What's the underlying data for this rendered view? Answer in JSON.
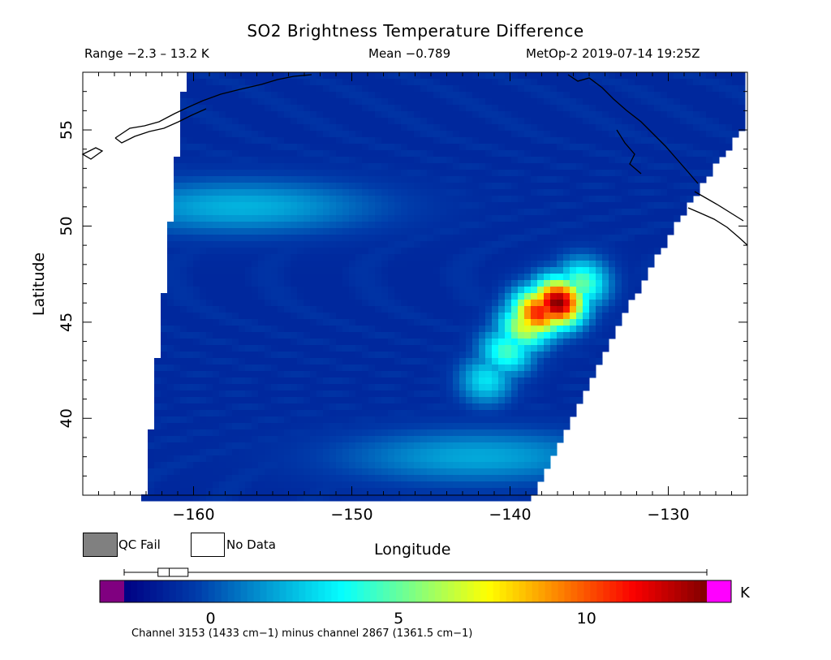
{
  "chart_data": {
    "type": "heatmap",
    "title": "SO2 Brightness Temperature Difference",
    "header": {
      "range": "Range −2.3 – 13.2 K",
      "mean": "Mean −0.789",
      "satellite_time": "MetOp-2 2019-07-14 19:25Z"
    },
    "xlabel": "Longitude",
    "ylabel": "Latitude",
    "xlim": [
      -167,
      -125
    ],
    "ylim": [
      36,
      58
    ],
    "xticks": [
      -160,
      -150,
      -140,
      -130
    ],
    "xtick_labels": [
      "−160",
      "−150",
      "−140",
      "−130"
    ],
    "yticks": [
      40,
      45,
      50,
      55
    ],
    "ytick_labels": [
      "40",
      "45",
      "50",
      "55"
    ],
    "colorbar": {
      "min": -2.3,
      "max": 13.2,
      "ticks": [
        0,
        5,
        10
      ],
      "tick_labels": [
        "0",
        "5",
        "10"
      ],
      "unit": "K",
      "below_color": "#800080",
      "above_color": "#ff00ff"
    },
    "legend": [
      {
        "label": "QC Fail",
        "color": "#808080"
      },
      {
        "label": "No Data",
        "color": "#ffffff"
      }
    ],
    "boxplot": {
      "min": -2.3,
      "q1": -1.4,
      "median": -1.1,
      "q3": -0.6,
      "max": 13.2
    },
    "field": {
      "background_value": -1.0,
      "features": [
        {
          "kind": "plume",
          "lon": -137.0,
          "lat": 46.0,
          "value": 13.2
        },
        {
          "kind": "plume",
          "lon": -138.2,
          "lat": 45.5,
          "value": 11.0
        },
        {
          "kind": "plume",
          "lon": -139.0,
          "lat": 44.8,
          "value": 7.0
        },
        {
          "kind": "plume",
          "lon": -140.2,
          "lat": 43.5,
          "value": 4.5
        },
        {
          "kind": "plume",
          "lon": -141.5,
          "lat": 42.0,
          "value": 3.0
        },
        {
          "kind": "plume",
          "lon": -135.5,
          "lat": 47.0,
          "value": 5.0
        },
        {
          "kind": "band",
          "lon": -157.0,
          "lat": 51.0,
          "value": 2.0
        },
        {
          "kind": "band",
          "lon": -142.0,
          "lat": 38.0,
          "value": 1.8
        }
      ]
    },
    "footnote": "Channel 3153 (1433 cm−1) minus channel 2867 (1361.5 cm−1)"
  }
}
